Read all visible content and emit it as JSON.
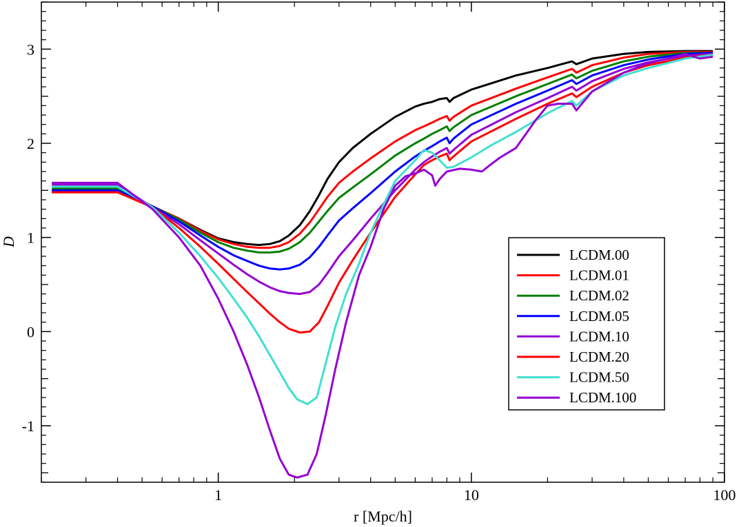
{
  "chart_data": {
    "type": "line",
    "xscale": "log",
    "xlabel": "r [Mpc/h]",
    "ylabel": "D",
    "xlim": [
      0.2,
      100
    ],
    "ylim": [
      -1.6,
      3.5
    ],
    "xticks": [
      {
        "value": 1,
        "label": "1"
      },
      {
        "value": 10,
        "label": "10"
      },
      {
        "value": 100,
        "label": "100"
      }
    ],
    "yticks": [
      {
        "value": -1,
        "label": "-1"
      },
      {
        "value": 0,
        "label": "0"
      },
      {
        "value": 1,
        "label": "1"
      },
      {
        "value": 2,
        "label": "2"
      },
      {
        "value": 3,
        "label": "3"
      }
    ],
    "legend_position": "lower-right",
    "series": [
      {
        "name": "LCDM.00",
        "color": "#000000",
        "x": [
          0.22,
          0.4,
          0.55,
          0.7,
          0.85,
          1,
          1.15,
          1.3,
          1.45,
          1.6,
          1.75,
          1.9,
          2.1,
          2.3,
          2.5,
          2.7,
          3,
          3.4,
          4,
          5,
          6,
          6.5,
          7,
          7.5,
          8,
          8.2,
          8.5,
          10,
          15,
          20,
          25,
          26,
          30,
          40,
          50,
          70,
          90
        ],
        "y": [
          1.48,
          1.48,
          1.33,
          1.2,
          1.08,
          0.99,
          0.95,
          0.93,
          0.92,
          0.93,
          0.96,
          1.02,
          1.13,
          1.28,
          1.45,
          1.62,
          1.8,
          1.95,
          2.1,
          2.28,
          2.39,
          2.42,
          2.44,
          2.47,
          2.48,
          2.44,
          2.48,
          2.57,
          2.72,
          2.8,
          2.87,
          2.84,
          2.9,
          2.95,
          2.97,
          2.98,
          2.98
        ]
      },
      {
        "name": "LCDM.01",
        "color": "#ff0000",
        "x": [
          0.22,
          0.4,
          0.55,
          0.7,
          0.85,
          1,
          1.15,
          1.3,
          1.45,
          1.6,
          1.75,
          1.9,
          2.1,
          2.3,
          2.5,
          2.7,
          3,
          3.4,
          4,
          5,
          6,
          6.5,
          7,
          7.5,
          8,
          8.2,
          8.5,
          10,
          15,
          20,
          25,
          26,
          30,
          40,
          50,
          70,
          90
        ],
        "y": [
          1.5,
          1.5,
          1.33,
          1.2,
          1.07,
          0.98,
          0.93,
          0.9,
          0.89,
          0.89,
          0.91,
          0.95,
          1.04,
          1.16,
          1.3,
          1.43,
          1.58,
          1.7,
          1.84,
          2.02,
          2.14,
          2.18,
          2.22,
          2.26,
          2.29,
          2.24,
          2.28,
          2.4,
          2.58,
          2.7,
          2.79,
          2.75,
          2.83,
          2.91,
          2.95,
          2.97,
          2.97
        ]
      },
      {
        "name": "LCDM.02",
        "color": "#008000",
        "x": [
          0.22,
          0.4,
          0.55,
          0.7,
          0.85,
          1,
          1.15,
          1.3,
          1.45,
          1.6,
          1.75,
          1.9,
          2.1,
          2.3,
          2.5,
          2.7,
          3,
          3.4,
          4,
          5,
          6,
          6.5,
          7,
          7.5,
          8,
          8.2,
          8.5,
          10,
          15,
          20,
          25,
          26,
          30,
          40,
          50,
          70,
          90
        ],
        "y": [
          1.52,
          1.52,
          1.33,
          1.19,
          1.05,
          0.95,
          0.89,
          0.86,
          0.84,
          0.84,
          0.85,
          0.88,
          0.95,
          1.05,
          1.17,
          1.28,
          1.42,
          1.53,
          1.67,
          1.87,
          2.0,
          2.05,
          2.1,
          2.14,
          2.18,
          2.13,
          2.17,
          2.3,
          2.5,
          2.63,
          2.73,
          2.69,
          2.77,
          2.87,
          2.92,
          2.96,
          2.96
        ]
      },
      {
        "name": "LCDM.05",
        "color": "#0000ff",
        "x": [
          0.22,
          0.4,
          0.55,
          0.7,
          0.85,
          1,
          1.15,
          1.3,
          1.45,
          1.6,
          1.75,
          1.9,
          2.1,
          2.3,
          2.5,
          2.7,
          3,
          3.4,
          4,
          5,
          6,
          6.5,
          7,
          7.5,
          8,
          8.2,
          8.5,
          10,
          15,
          20,
          25,
          26,
          30,
          40,
          50,
          70,
          90
        ],
        "y": [
          1.5,
          1.5,
          1.33,
          1.17,
          1.02,
          0.9,
          0.81,
          0.75,
          0.7,
          0.67,
          0.66,
          0.67,
          0.71,
          0.79,
          0.9,
          1.02,
          1.18,
          1.31,
          1.47,
          1.7,
          1.86,
          1.92,
          1.97,
          2.02,
          2.06,
          2.0,
          2.05,
          2.2,
          2.42,
          2.56,
          2.67,
          2.63,
          2.72,
          2.83,
          2.89,
          2.95,
          2.96
        ]
      },
      {
        "name": "LCDM.10",
        "color": "#9400d3",
        "x": [
          0.22,
          0.4,
          0.55,
          0.7,
          0.85,
          1,
          1.15,
          1.3,
          1.45,
          1.6,
          1.75,
          1.9,
          2.1,
          2.3,
          2.5,
          2.7,
          3,
          3.4,
          4,
          5,
          6,
          6.5,
          7,
          7.5,
          8,
          8.2,
          8.5,
          10,
          15,
          20,
          25,
          26,
          30,
          40,
          50,
          70,
          90
        ],
        "y": [
          1.56,
          1.56,
          1.32,
          1.14,
          0.97,
          0.83,
          0.71,
          0.61,
          0.53,
          0.47,
          0.43,
          0.41,
          0.4,
          0.42,
          0.5,
          0.62,
          0.8,
          0.97,
          1.2,
          1.5,
          1.72,
          1.8,
          1.86,
          1.91,
          1.95,
          1.89,
          1.93,
          2.09,
          2.33,
          2.48,
          2.6,
          2.56,
          2.66,
          2.79,
          2.86,
          2.93,
          2.95
        ]
      },
      {
        "name": "LCDM.20",
        "color": "#ff0000",
        "x": [
          0.22,
          0.4,
          0.55,
          0.7,
          0.85,
          1,
          1.15,
          1.3,
          1.45,
          1.6,
          1.75,
          1.9,
          2.1,
          2.3,
          2.5,
          2.7,
          3,
          3.4,
          4,
          5,
          6,
          6.5,
          7,
          7.5,
          8,
          8.2,
          8.5,
          10,
          15,
          20,
          25,
          26,
          30,
          40,
          50,
          70,
          90
        ],
        "y": [
          1.48,
          1.48,
          1.32,
          1.1,
          0.9,
          0.72,
          0.56,
          0.42,
          0.3,
          0.19,
          0.1,
          0.03,
          -0.01,
          0.0,
          0.1,
          0.27,
          0.52,
          0.76,
          1.05,
          1.43,
          1.67,
          1.77,
          1.82,
          1.86,
          1.89,
          1.82,
          1.86,
          2.02,
          2.26,
          2.42,
          2.53,
          2.49,
          2.6,
          2.75,
          2.83,
          2.91,
          2.94
        ]
      },
      {
        "name": "LCDM.50",
        "color": "#40e0d0",
        "x": [
          0.22,
          0.4,
          0.55,
          0.7,
          0.85,
          1,
          1.15,
          1.3,
          1.45,
          1.6,
          1.75,
          1.9,
          2.05,
          2.25,
          2.45,
          2.65,
          2.9,
          3.2,
          3.6,
          4,
          4.5,
          5,
          6,
          6.5,
          7,
          7.5,
          8,
          8.5,
          10,
          12,
          15,
          20,
          25,
          26,
          30,
          40,
          50,
          70,
          90
        ],
        "y": [
          1.54,
          1.54,
          1.32,
          1.05,
          0.8,
          0.57,
          0.35,
          0.15,
          -0.05,
          -0.25,
          -0.43,
          -0.6,
          -0.72,
          -0.77,
          -0.7,
          -0.35,
          0.05,
          0.4,
          0.72,
          1.05,
          1.35,
          1.6,
          1.82,
          1.93,
          1.9,
          1.82,
          1.74,
          1.75,
          1.85,
          1.98,
          2.12,
          2.32,
          2.45,
          2.4,
          2.55,
          2.72,
          2.8,
          2.9,
          2.94
        ]
      },
      {
        "name": "LCDM.100",
        "color": "#9400d3",
        "x": [
          0.22,
          0.4,
          0.55,
          0.7,
          0.85,
          1,
          1.15,
          1.3,
          1.45,
          1.6,
          1.75,
          1.9,
          2.05,
          2.25,
          2.45,
          2.65,
          2.9,
          3.2,
          3.6,
          4,
          4.5,
          5,
          5.5,
          6,
          6.5,
          7,
          7.2,
          7.5,
          8,
          9,
          10,
          11,
          12,
          13,
          15,
          18,
          20,
          22,
          25,
          26,
          30,
          40,
          50,
          60,
          70,
          80,
          90
        ],
        "y": [
          1.58,
          1.58,
          1.3,
          1.0,
          0.7,
          0.35,
          0.0,
          -0.35,
          -0.7,
          -1.05,
          -1.35,
          -1.52,
          -1.55,
          -1.52,
          -1.3,
          -0.9,
          -0.4,
          0.1,
          0.6,
          0.9,
          1.3,
          1.55,
          1.65,
          1.68,
          1.72,
          1.66,
          1.55,
          1.62,
          1.7,
          1.73,
          1.72,
          1.7,
          1.78,
          1.85,
          1.95,
          2.25,
          2.4,
          2.42,
          2.42,
          2.35,
          2.55,
          2.75,
          2.85,
          2.9,
          2.95,
          2.9,
          2.92
        ]
      }
    ]
  }
}
